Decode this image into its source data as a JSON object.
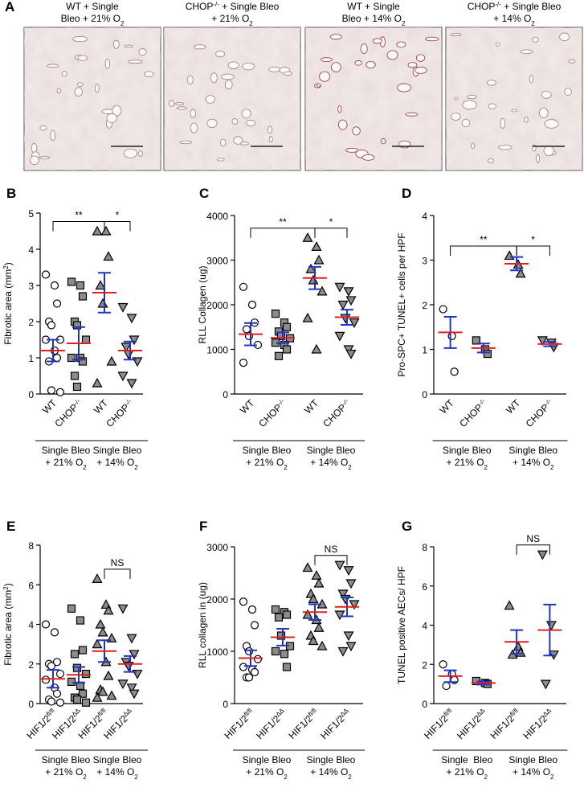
{
  "panel_a": {
    "letter": "A",
    "images": [
      {
        "title": [
          [
            {
              "t": "WT + Single"
            }
          ],
          [
            {
              "t": "Bleo + 21% O"
            },
            {
              "t": "2",
              "sub": true
            }
          ]
        ]
      },
      {
        "title": [
          [
            {
              "t": "CHOP"
            },
            {
              "t": "-/-",
              "sup": true
            },
            {
              "t": " + Single Bleo"
            }
          ],
          [
            {
              "t": "+ 21% O"
            },
            {
              "t": "2",
              "sub": true
            }
          ]
        ]
      },
      {
        "title": [
          [
            {
              "t": "WT + Single"
            }
          ],
          [
            {
              "t": "Bleo + 14% O"
            },
            {
              "t": "2",
              "sub": true
            }
          ]
        ]
      },
      {
        "title": [
          [
            {
              "t": "CHOP"
            },
            {
              "t": "-/-",
              "sup": true
            },
            {
              "t": " + Single Bleo"
            }
          ],
          [
            {
              "t": "+ 14% O"
            },
            {
              "t": "2",
              "sub": true
            }
          ]
        ]
      }
    ]
  },
  "chart_data": [
    {
      "type": "dot",
      "letter": "B",
      "y_label": [
        {
          "t": "Fibrotic area (mm"
        },
        {
          "t": "2",
          "sup": true
        },
        {
          "t": ")"
        }
      ],
      "ylim": [
        0,
        5
      ],
      "yticks": [
        0,
        1,
        2,
        3,
        4,
        5
      ],
      "mean_color": "#e02020",
      "sem_color": "#1f35c8",
      "groups": [
        {
          "label": [
            {
              "t": "WT"
            }
          ],
          "marker": "circle-open",
          "points": [
            3.3,
            3.0,
            2.5,
            2.0,
            1.9,
            1.5,
            1.5,
            1.2,
            1.0,
            0.9,
            0.1,
            0.05
          ],
          "mean": 1.2,
          "sem": 0.3
        },
        {
          "label": [
            {
              "t": "CHOP"
            },
            {
              "t": "-/-",
              "sup": true
            }
          ],
          "marker": "square",
          "points": [
            3.1,
            3.0,
            2.7,
            2.0,
            1.9,
            1.5,
            1.0,
            1.0,
            0.9,
            0.5,
            0.2
          ],
          "mean": 1.4,
          "sem": 0.45
        },
        {
          "label": [
            {
              "t": "WT"
            }
          ],
          "marker": "triangle-up",
          "points": [
            4.5,
            4.5,
            3.8,
            3.0,
            2.5,
            0.9,
            0.3
          ],
          "mean": 2.8,
          "sem": 0.55
        },
        {
          "label": [
            {
              "t": "CHOP"
            },
            {
              "t": "-/-",
              "sup": true
            }
          ],
          "marker": "triangle-down",
          "points": [
            2.4,
            2.1,
            1.5,
            1.3,
            1.1,
            0.9,
            0.5,
            0.3
          ],
          "mean": 1.2,
          "sem": 0.25
        }
      ],
      "group_labels": [
        {
          "span": [
            0,
            1
          ],
          "lines": [
            [
              {
                "t": "Single Bleo"
              }
            ],
            [
              {
                "t": "+ 21% O"
              },
              {
                "t": "2",
                "sub": true
              }
            ]
          ]
        },
        {
          "span": [
            2,
            3
          ],
          "lines": [
            [
              {
                "t": "Single Bleo"
              }
            ],
            [
              {
                "t": "+ 14% O"
              },
              {
                "t": "2",
                "sub": true
              }
            ]
          ]
        }
      ],
      "brackets": [
        {
          "span": [
            0,
            2
          ],
          "label": "**"
        },
        {
          "span": [
            2,
            3
          ],
          "label": "*"
        }
      ]
    },
    {
      "type": "dot",
      "letter": "C",
      "y_label": [
        {
          "t": "RLL Collagen (ug)"
        }
      ],
      "ylim": [
        0,
        4000
      ],
      "yticks": [
        0,
        1000,
        2000,
        3000,
        4000
      ],
      "mean_color": "#e02020",
      "sem_color": "#1f35c8",
      "groups": [
        {
          "label": [
            {
              "t": "WT"
            }
          ],
          "marker": "circle-open",
          "points": [
            2400,
            2000,
            1600,
            1450,
            1300,
            1100,
            700
          ],
          "mean": 1340,
          "sem": 250
        },
        {
          "label": [
            {
              "t": "CHOP"
            },
            {
              "t": "-/-",
              "sup": true
            }
          ],
          "marker": "square",
          "points": [
            1800,
            1600,
            1500,
            1400,
            1300,
            1250,
            1150,
            1100,
            1000,
            850
          ],
          "mean": 1260,
          "sem": 120
        },
        {
          "label": [
            {
              "t": "WT"
            }
          ],
          "marker": "triangle-up",
          "points": [
            3500,
            3300,
            3000,
            2800,
            2550,
            2300,
            1700,
            1000
          ],
          "mean": 2600,
          "sem": 250
        },
        {
          "label": [
            {
              "t": "CHOP"
            },
            {
              "t": "-/-",
              "sup": true
            }
          ],
          "marker": "triangle-down",
          "points": [
            2400,
            2300,
            2100,
            2000,
            1700,
            1600,
            1300,
            1000,
            900
          ],
          "mean": 1720,
          "sem": 170
        }
      ],
      "group_labels": [
        {
          "span": [
            0,
            1
          ],
          "lines": [
            [
              {
                "t": "Single Bleo"
              }
            ],
            [
              {
                "t": "+ 21% O"
              },
              {
                "t": "2",
                "sub": true
              }
            ]
          ]
        },
        {
          "span": [
            2,
            3
          ],
          "lines": [
            [
              {
                "t": "Single Bleo"
              }
            ],
            [
              {
                "t": "+ 14% O"
              },
              {
                "t": "2",
                "sub": true
              }
            ]
          ]
        }
      ],
      "brackets": [
        {
          "span": [
            0,
            2
          ],
          "label": "**"
        },
        {
          "span": [
            2,
            3
          ],
          "label": "*"
        }
      ]
    },
    {
      "type": "dot",
      "letter": "D",
      "y_label": [
        {
          "t": "Pro-SPC+ TUNEL+ cells per HPF"
        }
      ],
      "ylim": [
        0,
        4
      ],
      "yticks": [
        0,
        1,
        2,
        3,
        4
      ],
      "mean_color": "#e02020",
      "sem_color": "#1f35c8",
      "groups": [
        {
          "label": [
            {
              "t": "WT"
            }
          ],
          "marker": "circle-open",
          "points": [
            1.9,
            1.3,
            0.5
          ],
          "mean": 1.38,
          "sem": 0.35
        },
        {
          "label": [
            {
              "t": "CHOP"
            },
            {
              "t": "-/-",
              "sup": true
            }
          ],
          "marker": "square",
          "points": [
            1.2,
            1.0,
            0.9
          ],
          "mean": 1.03,
          "sem": 0.1
        },
        {
          "label": [
            {
              "t": "WT"
            }
          ],
          "marker": "triangle-up",
          "points": [
            3.1,
            2.9,
            2.7
          ],
          "mean": 2.92,
          "sem": 0.15
        },
        {
          "label": [
            {
              "t": "CHOP"
            },
            {
              "t": "-/-",
              "sup": true
            }
          ],
          "marker": "triangle-down",
          "points": [
            1.2,
            1.15,
            1.05
          ],
          "mean": 1.12,
          "sem": 0.05
        }
      ],
      "group_labels": [
        {
          "span": [
            0,
            1
          ],
          "lines": [
            [
              {
                "t": "Single Bleo"
              }
            ],
            [
              {
                "t": "+ 21% O"
              },
              {
                "t": "2",
                "sub": true
              }
            ]
          ]
        },
        {
          "span": [
            2,
            3
          ],
          "lines": [
            [
              {
                "t": "Single Bleo"
              }
            ],
            [
              {
                "t": "+ 14% O"
              },
              {
                "t": "2",
                "sub": true
              }
            ]
          ]
        }
      ],
      "brackets": [
        {
          "span": [
            0,
            2
          ],
          "label": "**"
        },
        {
          "span": [
            2,
            3
          ],
          "label": "*"
        }
      ]
    },
    {
      "type": "dot",
      "letter": "E",
      "y_label": [
        {
          "t": "Fibrotic area (mm"
        },
        {
          "t": "2",
          "sup": true
        },
        {
          "t": ")"
        }
      ],
      "ylim": [
        0,
        8
      ],
      "yticks": [
        0,
        2,
        4,
        6,
        8
      ],
      "mean_color": "#e02020",
      "sem_color": "#1f35c8",
      "groups": [
        {
          "label": [
            {
              "t": "HIF1/2"
            },
            {
              "t": "fl/fl",
              "sup": true
            }
          ],
          "marker": "circle-open",
          "points": [
            4.0,
            3.6,
            2.1,
            2.0,
            1.9,
            1.5,
            1.2,
            0.8,
            0.5,
            0.2,
            0.1,
            0.05
          ],
          "mean": 1.25,
          "sem": 0.45
        },
        {
          "label": [
            {
              "t": "HIF1/2"
            },
            {
              "t": "ΔΔ",
              "sup": true
            }
          ],
          "marker": "square",
          "points": [
            4.8,
            4.2,
            2.7,
            2.5,
            1.8,
            1.5,
            1.1,
            0.9,
            0.5,
            0.3,
            0.2,
            0.05
          ],
          "mean": 1.45,
          "sem": 0.4
        },
        {
          "label": [
            {
              "t": "HIF1/2"
            },
            {
              "t": "fl/fl",
              "sup": true
            }
          ],
          "marker": "triangle-up",
          "points": [
            6.3,
            5.0,
            4.7,
            4.0,
            3.6,
            3.3,
            3.0,
            2.1,
            1.4,
            0.7,
            0.6,
            0.4,
            0.3
          ],
          "mean": 2.65,
          "sem": 0.55
        },
        {
          "label": [
            {
              "t": "HIF1/2"
            },
            {
              "t": "ΔΔ",
              "sup": true
            }
          ],
          "marker": "triangle-down",
          "points": [
            4.8,
            3.3,
            2.5,
            2.1,
            1.9,
            1.5,
            1.0,
            0.8,
            0.5
          ],
          "mean": 2.0,
          "sem": 0.4
        }
      ],
      "group_labels": [
        {
          "span": [
            0,
            1
          ],
          "lines": [
            [
              {
                "t": "Single Bleo"
              }
            ],
            [
              {
                "t": "+ 21% O"
              },
              {
                "t": "2",
                "sub": true
              }
            ]
          ]
        },
        {
          "span": [
            2,
            3
          ],
          "lines": [
            [
              {
                "t": "Single Bleo"
              }
            ],
            [
              {
                "t": "+ 14% O"
              },
              {
                "t": "2",
                "sub": true
              }
            ]
          ]
        }
      ],
      "brackets": [
        {
          "span": [
            2,
            3
          ],
          "label": "NS"
        }
      ]
    },
    {
      "type": "dot",
      "letter": "F",
      "y_label": [
        {
          "t": "RLL collagen in (ug)"
        }
      ],
      "ylim": [
        0,
        3000
      ],
      "yticks": [
        0,
        1000,
        2000,
        3000
      ],
      "mean_color": "#e02020",
      "sem_color": "#1f35c8",
      "groups": [
        {
          "label": [
            {
              "t": "HIF1/2"
            },
            {
              "t": "fl/fl",
              "sup": true
            }
          ],
          "marker": "circle-open",
          "points": [
            1950,
            1800,
            1500,
            1100,
            1000,
            850,
            700,
            650,
            600,
            500,
            500
          ],
          "mean": 870,
          "sem": 150
        },
        {
          "label": [
            {
              "t": "HIF1/2"
            },
            {
              "t": "ΔΔ",
              "sup": true
            }
          ],
          "marker": "square",
          "points": [
            1800,
            1750,
            1700,
            1650,
            1300,
            1100,
            1000,
            950,
            700
          ],
          "mean": 1270,
          "sem": 160
        },
        {
          "label": [
            {
              "t": "HIF1/2"
            },
            {
              "t": "fl/fl",
              "sup": true
            }
          ],
          "marker": "triangle-up",
          "points": [
            2600,
            2450,
            2300,
            2100,
            2000,
            1900,
            1700,
            1600,
            1450,
            1300,
            1200,
            1100
          ],
          "mean": 1750,
          "sem": 150
        },
        {
          "label": [
            {
              "t": "HIF1/2"
            },
            {
              "t": "ΔΔ",
              "sup": true
            }
          ],
          "marker": "triangle-down",
          "points": [
            2650,
            2550,
            2300,
            2100,
            2000,
            1900,
            1700,
            1300,
            1100,
            1000
          ],
          "mean": 1850,
          "sem": 180
        }
      ],
      "group_labels": [
        {
          "span": [
            0,
            1
          ],
          "lines": [
            [
              {
                "t": "Single Bleo"
              }
            ],
            [
              {
                "t": "+ 21% O"
              },
              {
                "t": "2",
                "sub": true
              }
            ]
          ]
        },
        {
          "span": [
            2,
            3
          ],
          "lines": [
            [
              {
                "t": "Single Bleo"
              }
            ],
            [
              {
                "t": "+ 14% O"
              },
              {
                "t": "2",
                "sub": true
              }
            ]
          ]
        }
      ],
      "brackets": [
        {
          "span": [
            2,
            3
          ],
          "label": "NS"
        }
      ]
    },
    {
      "type": "dot",
      "letter": "G",
      "y_label": [
        {
          "t": "TUNEL positive AECs/ HPF"
        }
      ],
      "ylim": [
        0,
        8
      ],
      "yticks": [
        0,
        2,
        4,
        6,
        8
      ],
      "mean_color": "#e02020",
      "sem_color": "#1f35c8",
      "groups": [
        {
          "label": [
            {
              "t": "HIF1/2"
            },
            {
              "t": "fl/fl",
              "sup": true
            }
          ],
          "marker": "circle-open",
          "points": [
            2.0,
            1.5,
            1.2,
            0.9
          ],
          "mean": 1.4,
          "sem": 0.3
        },
        {
          "label": [
            {
              "t": "HIF1/2"
            },
            {
              "t": "ΔΔ",
              "sup": true
            }
          ],
          "marker": "square",
          "points": [
            1.15,
            1.05,
            1.0
          ],
          "mean": 1.05,
          "sem": 0.08
        },
        {
          "label": [
            {
              "t": "HIF1/2"
            },
            {
              "t": "fl/fl",
              "sup": true
            }
          ],
          "marker": "triangle-up",
          "points": [
            5.0,
            2.9,
            2.6,
            2.5
          ],
          "mean": 3.15,
          "sem": 0.6
        },
        {
          "label": [
            {
              "t": "HIF1/2"
            },
            {
              "t": "ΔΔ",
              "sup": true
            }
          ],
          "marker": "triangle-down",
          "points": [
            7.6,
            4.0,
            2.5,
            1.0
          ],
          "mean": 3.75,
          "sem": 1.3
        }
      ],
      "group_labels": [
        {
          "span": [
            0,
            1
          ],
          "lines": [
            [
              {
                "t": "Single  Bleo"
              }
            ],
            [
              {
                "t": "+ 21% O"
              },
              {
                "t": "2",
                "sub": true
              }
            ]
          ]
        },
        {
          "span": [
            2,
            3
          ],
          "lines": [
            [
              {
                "t": "Single Bleo"
              }
            ],
            [
              {
                "t": "+ 14% O"
              },
              {
                "t": "2",
                "sub": true
              }
            ]
          ]
        }
      ],
      "brackets": [
        {
          "span": [
            2,
            3
          ],
          "label": "NS"
        }
      ]
    }
  ]
}
